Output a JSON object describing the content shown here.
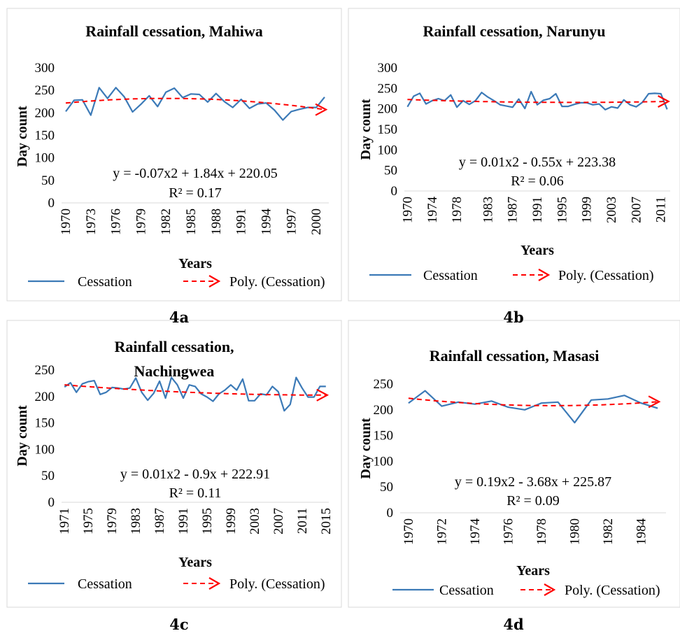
{
  "colors": {
    "series": "#3c7ab7",
    "trend": "#ff0000",
    "frame": "#d9d9d9",
    "text": "#000000"
  },
  "chart_data": [
    {
      "panel": "4a",
      "type": "line",
      "title": "Rainfall cessation, Mahiwa",
      "xlabel": "Years",
      "ylabel": "Day count",
      "ylim": [
        0,
        300
      ],
      "yticks": [
        0,
        50,
        100,
        150,
        200,
        250,
        300
      ],
      "xtick_labels": [
        "1970",
        "1973",
        "1976",
        "1979",
        "1982",
        "1985",
        "1988",
        "1991",
        "1994",
        "1997",
        "2000"
      ],
      "x_start": 1970,
      "series": [
        {
          "name": "Cessation",
          "x": [
            1970,
            1971,
            1972,
            1973,
            1974,
            1975,
            1976,
            1977,
            1978,
            1979,
            1980,
            1981,
            1982,
            1983,
            1984,
            1985,
            1986,
            1987,
            1988,
            1989,
            1990,
            1991,
            1992,
            1993,
            1994,
            1995,
            1996,
            1997,
            1998,
            1999,
            2000,
            2001
          ],
          "values": [
            203,
            228,
            229,
            195,
            256,
            232,
            256,
            236,
            202,
            219,
            238,
            214,
            246,
            255,
            234,
            242,
            241,
            224,
            243,
            225,
            212,
            230,
            210,
            220,
            222,
            206,
            184,
            203,
            208,
            212,
            212,
            235
          ]
        },
        {
          "name": "Poly. (Cessation)",
          "trend": true,
          "coefficients": [
            -0.07,
            1.84,
            220.05
          ]
        }
      ],
      "equation": "y = -0.07x2 + 1.84x + 220.05",
      "r2": "R² = 0.17",
      "legend": {
        "position": "bottom",
        "entries": [
          "Cessation",
          "Poly. (Cessation)"
        ]
      },
      "grid": false
    },
    {
      "panel": "4b",
      "type": "line",
      "title": "Rainfall cessation, Narunyu",
      "xlabel": "Years",
      "ylabel": "Day count",
      "ylim": [
        0,
        300
      ],
      "yticks": [
        0,
        50,
        100,
        150,
        200,
        250,
        300
      ],
      "xtick_labels": [
        "1970",
        "1974",
        "1978",
        "1983",
        "1987",
        "1991",
        "1995",
        "1999",
        "2003",
        "2007",
        "2011"
      ],
      "x_start": 1970,
      "series": [
        {
          "name": "Cessation",
          "x": [
            1970,
            1971,
            1972,
            1973,
            1974,
            1975,
            1976,
            1977,
            1978,
            1979,
            1980,
            1981,
            1982,
            1983,
            1984,
            1985,
            1986,
            1987,
            1988,
            1989,
            1990,
            1991,
            1992,
            1993,
            1994,
            1995,
            1996,
            1997,
            1998,
            1999,
            2000,
            2001,
            2002,
            2003,
            2004,
            2005,
            2006,
            2007,
            2008,
            2009,
            2010,
            2011,
            2012
          ],
          "values": [
            205,
            231,
            238,
            212,
            220,
            225,
            220,
            234,
            204,
            220,
            211,
            220,
            240,
            229,
            220,
            210,
            207,
            204,
            224,
            201,
            242,
            210,
            221,
            225,
            237,
            206,
            206,
            211,
            215,
            215,
            210,
            212,
            198,
            205,
            202,
            222,
            210,
            205,
            216,
            237,
            238,
            237,
            199
          ]
        },
        {
          "name": "Poly. (Cessation)",
          "trend": true,
          "coefficients": [
            0.01,
            -0.55,
            223.38
          ]
        }
      ],
      "equation": "y = 0.01x2 - 0.55x + 223.38",
      "r2": "R² = 0.06",
      "legend": {
        "position": "bottom",
        "entries": [
          "Cessation",
          "Poly. (Cessation)"
        ]
      },
      "grid": false
    },
    {
      "panel": "4c",
      "type": "line",
      "title": "Rainfall cessation, Nachingwea",
      "xlabel": "Years",
      "ylabel": "Day count",
      "ylim": [
        0,
        250
      ],
      "yticks": [
        0,
        50,
        100,
        150,
        200,
        250
      ],
      "xtick_labels": [
        "1971",
        "1975",
        "1979",
        "1983",
        "1987",
        "1991",
        "1995",
        "1999",
        "2003",
        "2007",
        "2011",
        "2015"
      ],
      "x_start": 1971,
      "series": [
        {
          "name": "Cessation",
          "x": [
            1971,
            1972,
            1973,
            1974,
            1975,
            1976,
            1977,
            1978,
            1979,
            1980,
            1981,
            1982,
            1983,
            1984,
            1985,
            1986,
            1987,
            1988,
            1989,
            1990,
            1991,
            1992,
            1993,
            1994,
            1995,
            1996,
            1997,
            1998,
            1999,
            2000,
            2001,
            2002,
            2003,
            2004,
            2005,
            2006,
            2007,
            2008,
            2009,
            2010,
            2011,
            2012,
            2013,
            2014,
            2015
          ],
          "values": [
            218,
            226,
            208,
            224,
            228,
            230,
            204,
            208,
            217,
            216,
            214,
            216,
            235,
            208,
            193,
            206,
            229,
            197,
            236,
            222,
            197,
            222,
            219,
            205,
            199,
            191,
            205,
            212,
            222,
            212,
            233,
            192,
            192,
            205,
            203,
            219,
            209,
            173,
            185,
            236,
            216,
            199,
            199,
            219,
            219
          ]
        },
        {
          "name": "Poly. (Cessation)",
          "trend": true,
          "coefficients": [
            0.01,
            -0.9,
            222.91
          ]
        }
      ],
      "equation": "y = 0.01x2 - 0.9x + 222.91",
      "r2": "R² = 0.11",
      "legend": {
        "position": "bottom",
        "entries": [
          "Cessation",
          "Poly. (Cessation)"
        ]
      },
      "grid": false
    },
    {
      "panel": "4d",
      "type": "line",
      "title": "Rainfall cessation, Masasi",
      "xlabel": "Years",
      "ylabel": "Day count",
      "ylim": [
        0,
        250
      ],
      "yticks": [
        0,
        50,
        100,
        150,
        200,
        250
      ],
      "xtick_labels": [
        "1970",
        "1972",
        "1974",
        "1976",
        "1978",
        "1980",
        "1982",
        "1984"
      ],
      "x_start": 1970,
      "series": [
        {
          "name": "Cessation",
          "x": [
            1970,
            1971,
            1972,
            1973,
            1974,
            1975,
            1976,
            1977,
            1978,
            1979,
            1980,
            1981,
            1982,
            1983,
            1984,
            1985
          ],
          "values": [
            213,
            237,
            207,
            215,
            211,
            217,
            205,
            200,
            213,
            215,
            175,
            219,
            221,
            228,
            213,
            203
          ]
        },
        {
          "name": "Poly. (Cessation)",
          "trend": true,
          "coefficients": [
            0.19,
            -3.68,
            225.87
          ]
        }
      ],
      "equation": "y = 0.19x2 - 3.68x + 225.87",
      "r2": "R² = 0.09",
      "legend": {
        "position": "bottom",
        "entries": [
          "Cessation",
          "Poly. (Cessation)"
        ]
      },
      "grid": false
    }
  ],
  "captions": [
    "4a",
    "4b",
    "4c",
    "4d"
  ]
}
